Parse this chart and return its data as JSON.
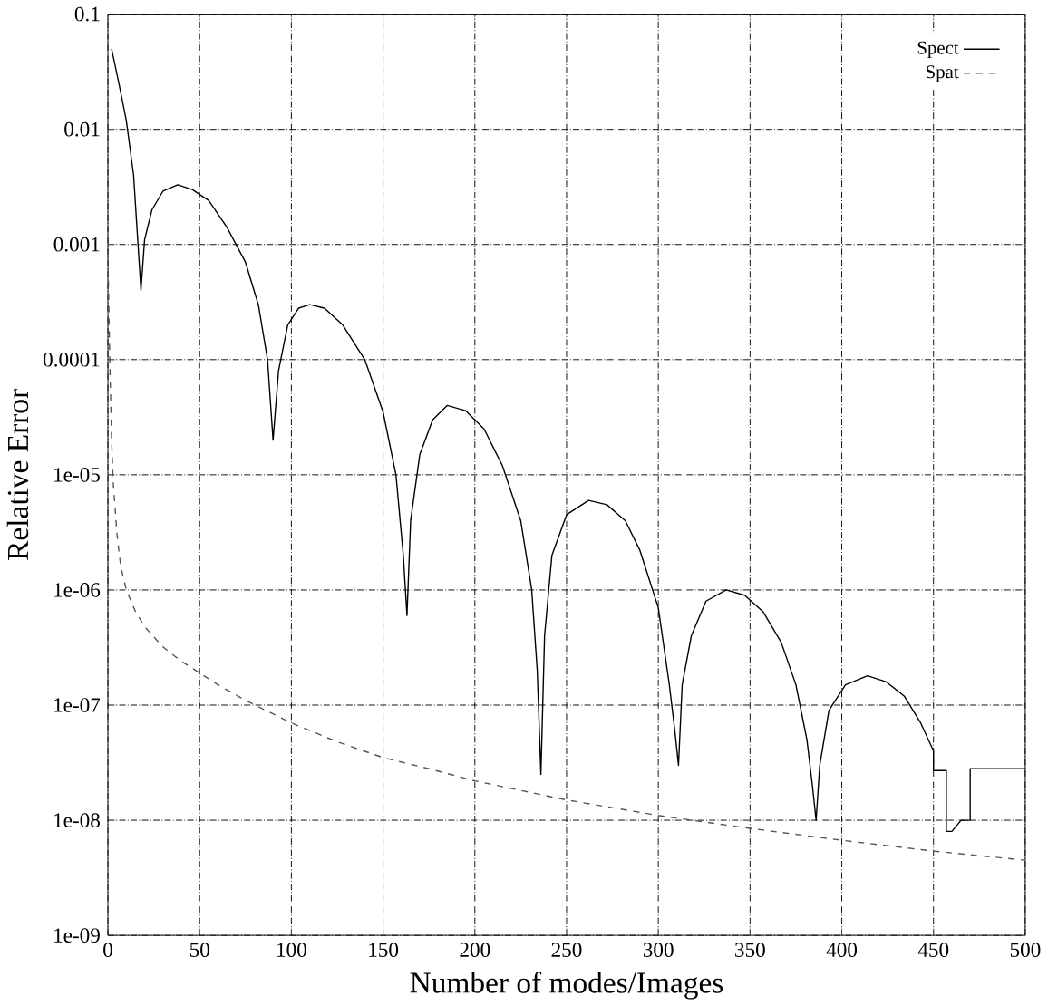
{
  "chart_data": {
    "type": "line",
    "xlabel": "Number of modes/Images",
    "ylabel": "Relative Error",
    "log": "y",
    "grid": true,
    "legend": "top right",
    "xlim": [
      0,
      500
    ],
    "ylim": [
      1e-09,
      0.1
    ],
    "xticks": [
      0,
      50,
      100,
      150,
      200,
      250,
      300,
      350,
      400,
      450,
      500
    ],
    "yticks": [
      0.1,
      0.01,
      0.001,
      0.0001,
      {
        "value": 1e-05,
        "label": "1e-05"
      },
      {
        "value": 1e-06,
        "label": "1e-06"
      },
      {
        "value": 1e-07,
        "label": "1e-07"
      },
      {
        "value": 1e-08,
        "label": "1e-08"
      },
      {
        "value": 1e-09,
        "label": "1e-09"
      }
    ],
    "series": [
      {
        "name": "Spect",
        "color": "#000000",
        "line_style": "solid",
        "x": [
          2,
          6,
          10,
          14,
          18,
          20,
          24,
          30,
          38,
          46,
          55,
          65,
          75,
          82,
          87,
          90,
          93,
          98,
          104,
          110,
          118,
          128,
          140,
          150,
          157,
          161,
          163,
          165,
          170,
          177,
          185,
          195,
          205,
          215,
          225,
          231,
          234,
          236,
          238,
          242,
          250,
          262,
          272,
          282,
          290,
          300,
          306,
          309,
          311,
          313,
          318,
          326,
          337,
          347,
          357,
          367,
          375,
          381,
          384,
          386,
          388,
          393,
          402,
          414,
          424,
          434,
          443,
          450,
          450,
          457,
          457,
          460,
          465,
          470,
          470,
          500
        ],
        "values": [
          0.05,
          0.025,
          0.012,
          0.004,
          0.0004,
          0.0011,
          0.002,
          0.0029,
          0.0033,
          0.003,
          0.0024,
          0.0014,
          0.0007,
          0.0003,
          0.0001,
          2e-05,
          8e-05,
          0.0002,
          0.00028,
          0.0003,
          0.00028,
          0.0002,
          0.0001,
          3.5e-05,
          1e-05,
          2e-06,
          6e-07,
          4e-06,
          1.5e-05,
          3e-05,
          4e-05,
          3.6e-05,
          2.5e-05,
          1.2e-05,
          4e-06,
          1e-06,
          2e-07,
          2.5e-08,
          4e-07,
          2e-06,
          4.5e-06,
          6e-06,
          5.5e-06,
          4e-06,
          2.2e-06,
          7e-07,
          1.5e-07,
          6e-08,
          3e-08,
          1.5e-07,
          4e-07,
          8e-07,
          1e-06,
          9e-07,
          6.5e-07,
          3.5e-07,
          1.5e-07,
          5e-08,
          2e-08,
          1e-08,
          3e-08,
          9e-08,
          1.5e-07,
          1.8e-07,
          1.6e-07,
          1.2e-07,
          7e-08,
          4e-08,
          2.7e-08,
          2.7e-08,
          8e-09,
          8e-09,
          1e-08,
          1e-08,
          2.8e-08,
          2.8e-08
        ]
      },
      {
        "name": "Spat",
        "color": "#555555",
        "line_style": "dashed",
        "x": [
          0,
          1,
          2,
          3,
          5,
          7,
          10,
          15,
          20,
          30,
          40,
          50,
          60,
          75,
          100,
          125,
          150,
          175,
          200,
          250,
          300,
          350,
          400,
          450,
          500
        ],
        "values": [
          0.0008,
          0.0001,
          2e-05,
          8e-06,
          3e-06,
          1.6e-06,
          1e-06,
          6.5e-07,
          4.8e-07,
          3.2e-07,
          2.4e-07,
          1.9e-07,
          1.5e-07,
          1.1e-07,
          7e-08,
          4.8e-08,
          3.5e-08,
          2.8e-08,
          2.2e-08,
          1.5e-08,
          1.1e-08,
          8.5e-09,
          6.7e-09,
          5.4e-09,
          4.5e-09
        ]
      }
    ]
  }
}
